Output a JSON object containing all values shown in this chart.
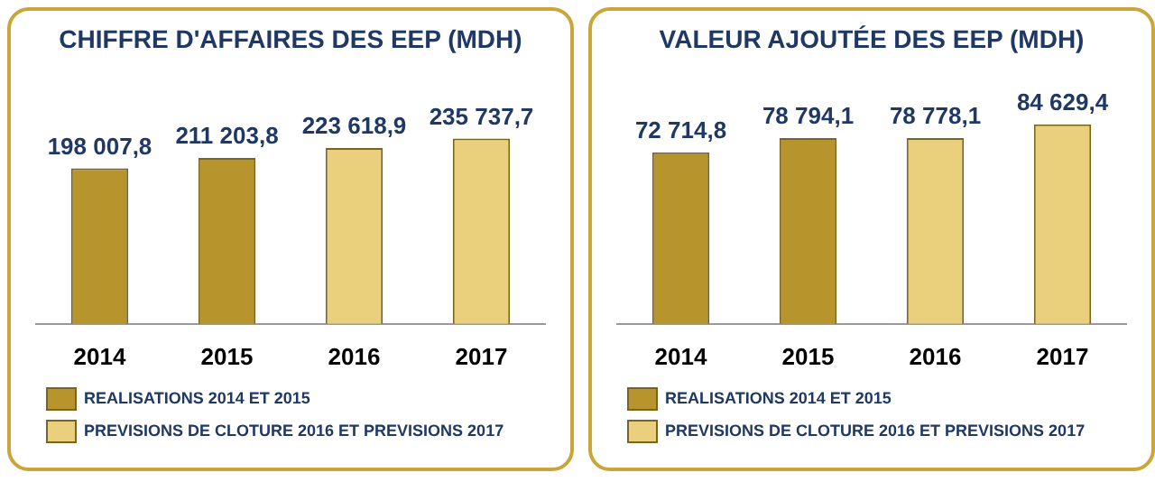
{
  "chart_data": [
    {
      "type": "bar",
      "title": "CHIFFRE D'AFFAIRES DES EEP (MDH)",
      "categories": [
        "2014",
        "2015",
        "2016",
        "2017"
      ],
      "stacked": true,
      "legend": "bottom",
      "series": [
        {
          "name": "REALISATIONS 2014 ET 2015",
          "color": "#b8942c",
          "values": [
            198007.8,
            211203.8,
            null,
            null
          ],
          "value_labels": [
            "198 007,8",
            "211 203,8",
            null,
            null
          ]
        },
        {
          "name": "PREVISIONS DE CLOTURE 2016 ET PREVISIONS 2017",
          "color": "#ead07c",
          "values": [
            null,
            null,
            223618.9,
            235737.7
          ],
          "value_labels": [
            null,
            null,
            "223 618,9",
            "235 737,7"
          ]
        }
      ]
    },
    {
      "type": "bar",
      "title": "VALEUR AJOUTÉE DES EEP (MDH)",
      "categories": [
        "2014",
        "2015",
        "2016",
        "2017"
      ],
      "stacked": true,
      "legend": "bottom",
      "series": [
        {
          "name": "REALISATIONS 2014 ET 2015",
          "color": "#b8942c",
          "values": [
            72714.8,
            78794.1,
            null,
            null
          ],
          "value_labels": [
            "72 714,8",
            "78 794,1",
            null,
            null
          ]
        },
        {
          "name": "PREVISIONS DE CLOTURE 2016 ET PREVISIONS 2017",
          "color": "#ead07c",
          "values": [
            null,
            null,
            78778.1,
            84629.4
          ],
          "value_labels": [
            null,
            null,
            "78 778,1",
            "84 629,4"
          ]
        }
      ]
    }
  ]
}
